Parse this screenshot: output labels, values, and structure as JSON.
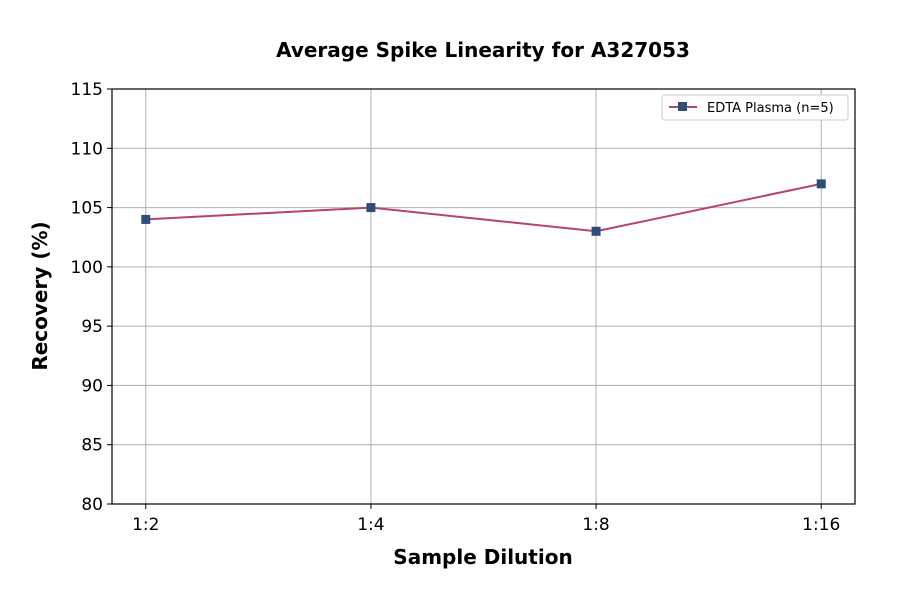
{
  "chart_data": {
    "type": "line",
    "title": "Average Spike Linearity for A327053",
    "xlabel": "Sample Dilution",
    "ylabel": "Recovery (%)",
    "categories": [
      "1:2",
      "1:4",
      "1:8",
      "1:16"
    ],
    "series": [
      {
        "name": "EDTA Plasma (n=5)",
        "values": [
          104,
          105,
          103,
          107
        ],
        "line_color": "#b5446e",
        "marker_color": "#2e4e78",
        "marker": "square"
      }
    ],
    "ylim": [
      80,
      115
    ],
    "yticks": [
      80,
      85,
      90,
      95,
      100,
      105,
      110,
      115
    ],
    "grid": true,
    "legend_position": "top-right"
  }
}
